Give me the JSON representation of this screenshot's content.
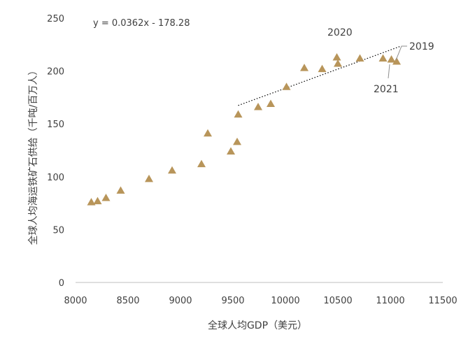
{
  "chart_data": {
    "type": "scatter",
    "xlabel": "全球人均GDP（美元）",
    "ylabel": "全球人均海运铁矿石供给（千吨/百万人）",
    "xlim": [
      8000,
      11500
    ],
    "ylim": [
      0,
      250
    ],
    "xticks": [
      8000,
      8500,
      9000,
      9500,
      10000,
      10500,
      11000,
      11500
    ],
    "yticks": [
      0,
      50,
      100,
      150,
      200,
      250
    ],
    "grid": false,
    "marker": "triangle",
    "marker_color": "#b8955a",
    "trendline": {
      "equation": "y = 0.0362x - 178.28",
      "slope": 0.0362,
      "intercept": -178.28,
      "x_range": [
        9550,
        11100
      ],
      "style": "dotted",
      "color": "#000000"
    },
    "points": [
      {
        "x": 8150,
        "y": 76
      },
      {
        "x": 8210,
        "y": 77
      },
      {
        "x": 8290,
        "y": 80
      },
      {
        "x": 8430,
        "y": 87
      },
      {
        "x": 8700,
        "y": 98
      },
      {
        "x": 8920,
        "y": 106
      },
      {
        "x": 9200,
        "y": 112
      },
      {
        "x": 9260,
        "y": 141
      },
      {
        "x": 9480,
        "y": 124
      },
      {
        "x": 9540,
        "y": 133
      },
      {
        "x": 9550,
        "y": 159
      },
      {
        "x": 9740,
        "y": 166
      },
      {
        "x": 9860,
        "y": 169
      },
      {
        "x": 10010,
        "y": 185
      },
      {
        "x": 10180,
        "y": 203
      },
      {
        "x": 10350,
        "y": 202
      },
      {
        "x": 10490,
        "y": 213
      },
      {
        "x": 10500,
        "y": 207
      },
      {
        "x": 10710,
        "y": 212
      },
      {
        "x": 10930,
        "y": 212
      },
      {
        "x": 11010,
        "y": 211
      },
      {
        "x": 11060,
        "y": 209
      }
    ],
    "annotations": [
      {
        "label": "2020"
      },
      {
        "label": "2019"
      },
      {
        "label": "2021"
      }
    ]
  }
}
